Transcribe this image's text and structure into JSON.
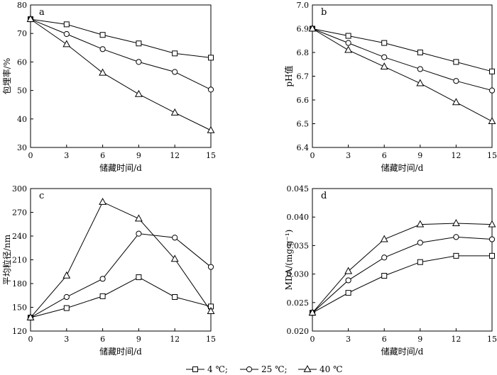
{
  "chart_data": [
    {
      "type": "line",
      "panel_label": "a",
      "xlabel": "储藏时间/d",
      "ylabel": "包埋率/%",
      "x": [
        0,
        3,
        6,
        9,
        12,
        15
      ],
      "xlim": [
        0,
        15
      ],
      "ylim": [
        30,
        80
      ],
      "xticks": [
        0,
        3,
        6,
        9,
        12,
        15
      ],
      "yticks": [
        30,
        40,
        50,
        60,
        70,
        80
      ],
      "series": [
        {
          "name": "4 ℃",
          "marker": "square",
          "values": [
            75,
            73.2,
            69.5,
            66.5,
            63.0,
            61.5
          ]
        },
        {
          "name": "25 ℃",
          "marker": "circle",
          "values": [
            75,
            69.8,
            64.5,
            60.0,
            56.5,
            50.3
          ]
        },
        {
          "name": "40 ℃",
          "marker": "triangle",
          "values": [
            75,
            66.2,
            56.2,
            48.7,
            42.2,
            36.0
          ]
        }
      ]
    },
    {
      "type": "line",
      "panel_label": "b",
      "xlabel": "储藏时间/d",
      "ylabel": "pH值",
      "x": [
        0,
        3,
        6,
        9,
        12,
        15
      ],
      "xlim": [
        0,
        15
      ],
      "ylim": [
        6.4,
        7.0
      ],
      "xticks": [
        0,
        3,
        6,
        9,
        12,
        15
      ],
      "yticks": [
        6.4,
        6.5,
        6.6,
        6.7,
        6.8,
        6.9,
        7.0
      ],
      "series": [
        {
          "name": "4 ℃",
          "marker": "square",
          "values": [
            6.9,
            6.87,
            6.84,
            6.8,
            6.76,
            6.72
          ]
        },
        {
          "name": "25 ℃",
          "marker": "circle",
          "values": [
            6.9,
            6.84,
            6.78,
            6.73,
            6.68,
            6.64
          ]
        },
        {
          "name": "40 ℃",
          "marker": "triangle",
          "values": [
            6.9,
            6.81,
            6.74,
            6.67,
            6.59,
            6.51
          ]
        }
      ]
    },
    {
      "type": "line",
      "panel_label": "c",
      "xlabel": "储藏时间/d",
      "ylabel": "平均粒径/nm",
      "x": [
        0,
        3,
        6,
        9,
        12,
        15
      ],
      "xlim": [
        0,
        15
      ],
      "ylim": [
        120,
        300
      ],
      "xticks": [
        0,
        3,
        6,
        9,
        12,
        15
      ],
      "yticks": [
        120,
        150,
        180,
        210,
        240,
        270,
        300
      ],
      "series": [
        {
          "name": "4 ℃",
          "marker": "square",
          "values": [
            137,
            149,
            164,
            188,
            163,
            151
          ]
        },
        {
          "name": "25 ℃",
          "marker": "circle",
          "values": [
            137,
            163,
            186,
            243,
            238,
            201
          ]
        },
        {
          "name": "40 ℃",
          "marker": "triangle",
          "values": [
            137,
            190,
            283,
            262,
            211,
            145
          ]
        }
      ]
    },
    {
      "type": "line",
      "panel_label": "d",
      "xlabel": "储藏时间/d",
      "ylabel": "MDA/(mg·g⁻¹)",
      "x": [
        0,
        3,
        6,
        9,
        12,
        15
      ],
      "xlim": [
        0,
        15
      ],
      "ylim": [
        0.02,
        0.045
      ],
      "xticks": [
        0,
        3,
        6,
        9,
        12,
        15
      ],
      "yticks": [
        0.02,
        0.025,
        0.03,
        0.035,
        0.04,
        0.045
      ],
      "series": [
        {
          "name": "4 ℃",
          "marker": "square",
          "values": [
            0.0232,
            0.0267,
            0.0297,
            0.0321,
            0.0332,
            0.0332
          ]
        },
        {
          "name": "25 ℃",
          "marker": "circle",
          "values": [
            0.0232,
            0.0289,
            0.0329,
            0.0355,
            0.0365,
            0.0361
          ]
        },
        {
          "name": "40 ℃",
          "marker": "triangle",
          "values": [
            0.0232,
            0.0305,
            0.0361,
            0.0387,
            0.0389,
            0.0387
          ]
        }
      ]
    }
  ],
  "legend": {
    "placement": "bottom-center",
    "entries": [
      {
        "marker": "square",
        "label": "4 ℃;"
      },
      {
        "marker": "circle",
        "label": "25 ℃;"
      },
      {
        "marker": "triangle",
        "label": "40 ℃"
      }
    ]
  }
}
